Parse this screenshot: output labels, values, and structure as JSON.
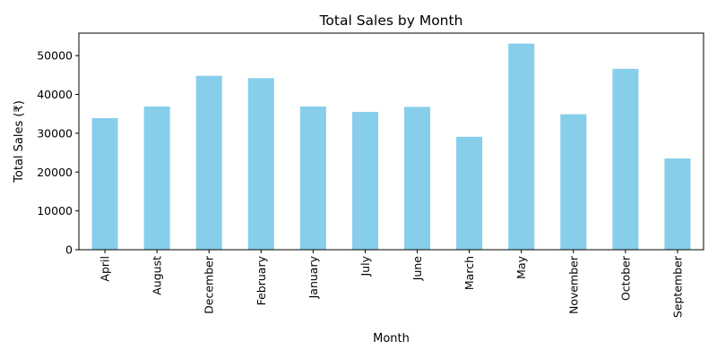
{
  "chart_data": {
    "type": "bar",
    "title": "Total Sales by Month",
    "xlabel": "Month",
    "ylabel": "Total Sales (₹)",
    "categories": [
      "April",
      "August",
      "December",
      "February",
      "January",
      "July",
      "June",
      "March",
      "May",
      "November",
      "October",
      "September"
    ],
    "values": [
      33900,
      36900,
      44800,
      44200,
      36900,
      35500,
      36800,
      29100,
      53100,
      34900,
      46600,
      23500
    ],
    "ylim": [
      0,
      55800
    ],
    "yticks": [
      0,
      10000,
      20000,
      30000,
      40000,
      50000
    ],
    "bar_color": "#87ceeb",
    "grid": false,
    "legend": "none"
  }
}
